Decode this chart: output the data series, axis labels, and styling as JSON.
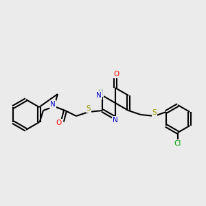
{
  "bg_color": "#ebebeb",
  "bond_color": "#000000",
  "bond_width": 1.5,
  "atom_colors": {
    "N": "#0000cc",
    "O": "#ff0000",
    "S": "#999900",
    "Cl": "#009900",
    "H": "#5a9090",
    "C": "#000000"
  },
  "font_size": 7.5,
  "fig_size": [
    3.0,
    3.0
  ],
  "dpi": 100
}
